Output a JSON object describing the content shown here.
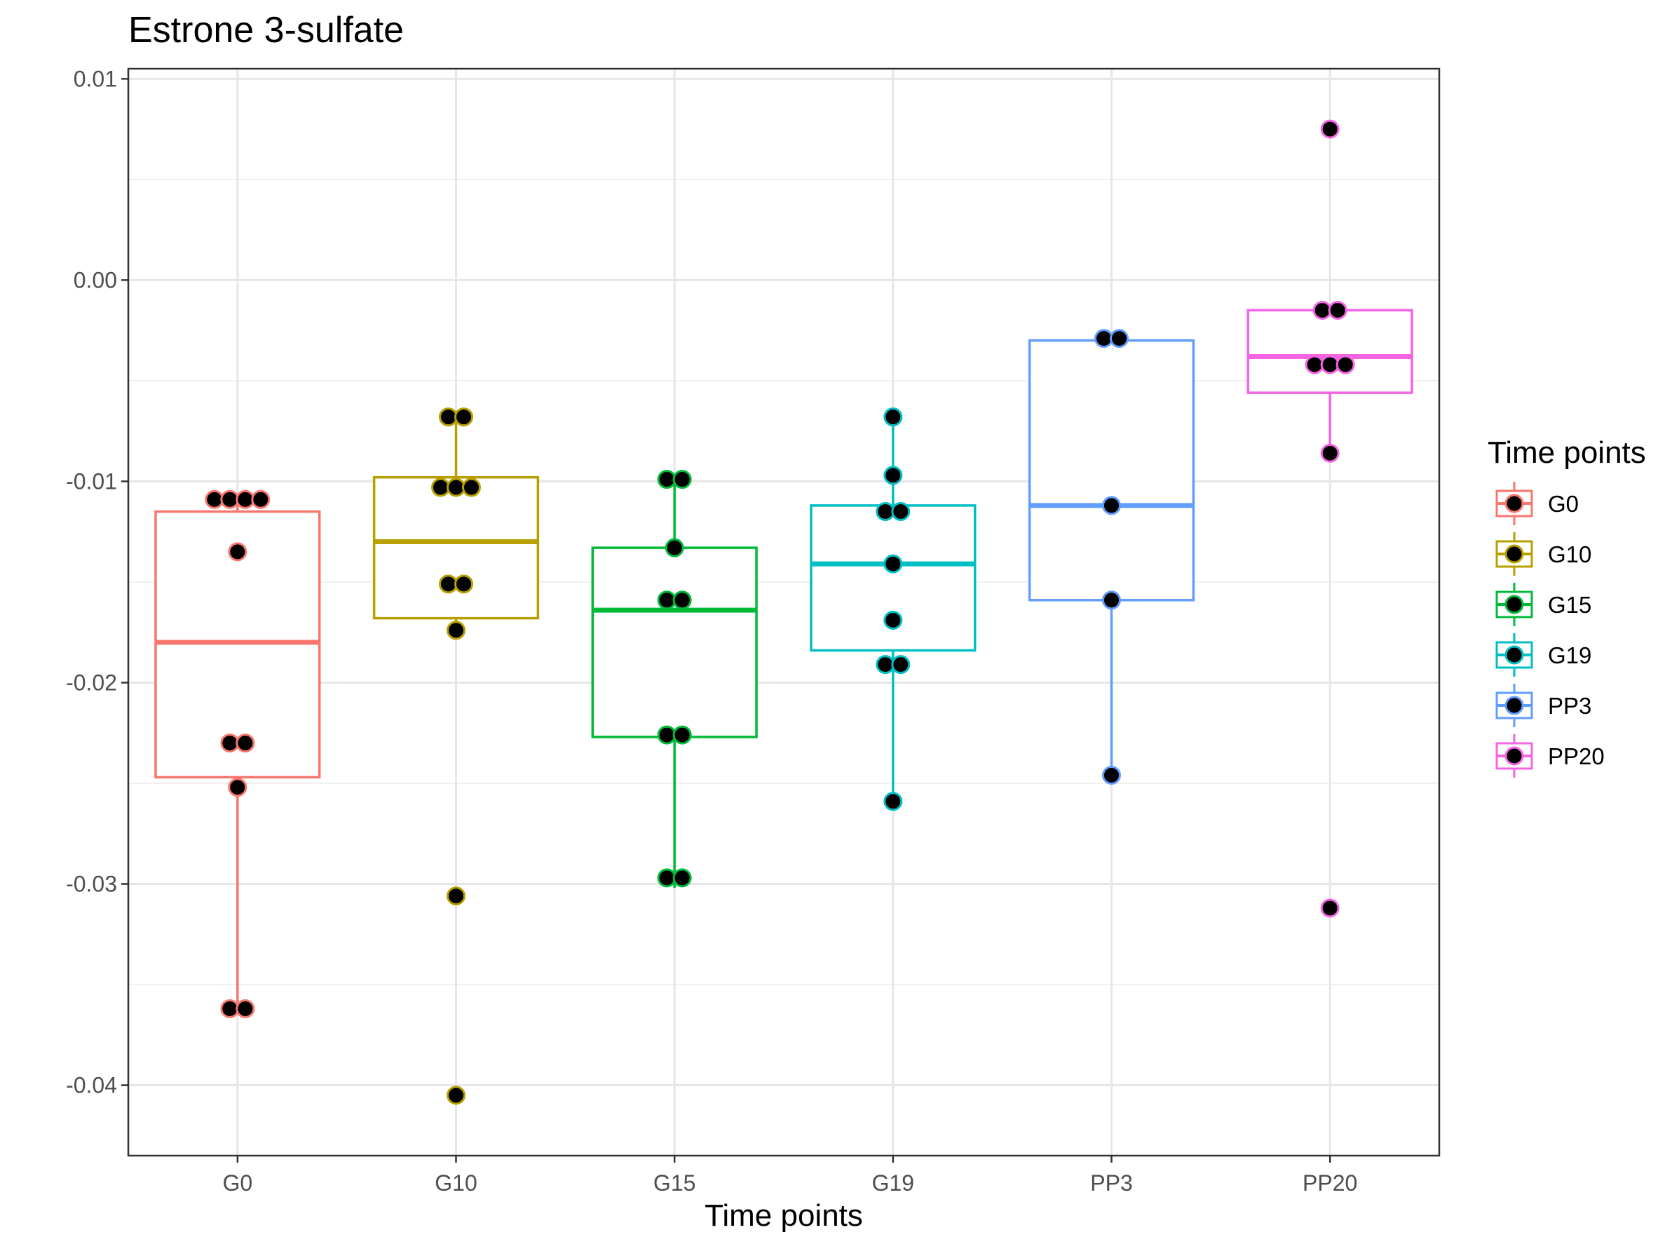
{
  "chart_data": {
    "type": "box",
    "title": "Estrone 3-sulfate",
    "xlabel": "Time points",
    "ylabel": "",
    "ylim": [
      -0.0435,
      0.0105
    ],
    "y_ticks": [
      0.01,
      0.0,
      -0.01,
      -0.02,
      -0.03,
      -0.04
    ],
    "y_tick_labels": [
      "0.01",
      "0.00",
      "-0.01",
      "-0.02",
      "-0.03",
      "-0.04"
    ],
    "categories": [
      "G0",
      "G10",
      "G15",
      "G19",
      "PP3",
      "PP20"
    ],
    "grid": true,
    "legend": {
      "title": "Time points",
      "position": "right"
    },
    "series": [
      {
        "name": "G0",
        "color": "#F8766D",
        "box": {
          "lower": -0.0247,
          "q1": -0.0247,
          "median": -0.018,
          "q3": -0.0115,
          "upper": -0.0109,
          "whisker_low": -0.0362,
          "whisker_high": -0.0109
        },
        "points": [
          -0.0109,
          -0.0109,
          -0.0109,
          -0.0109,
          -0.0135,
          -0.023,
          -0.023,
          -0.0252,
          -0.0362,
          -0.0362
        ]
      },
      {
        "name": "G10",
        "color": "#B79F00",
        "box": {
          "q1": -0.0168,
          "median": -0.013,
          "q3": -0.0098,
          "whisker_low": -0.0174,
          "whisker_high": -0.0068
        },
        "points": [
          -0.0068,
          -0.0068,
          -0.0103,
          -0.0103,
          -0.0103,
          -0.0151,
          -0.0151,
          -0.0174,
          -0.0306,
          -0.0405
        ]
      },
      {
        "name": "G15",
        "color": "#00BA38",
        "box": {
          "q1": -0.0227,
          "median": -0.0164,
          "q3": -0.0133,
          "whisker_low": -0.0302,
          "whisker_high": -0.0099
        },
        "points": [
          -0.0099,
          -0.0099,
          -0.0133,
          -0.0159,
          -0.0159,
          -0.0226,
          -0.0226,
          -0.0297,
          -0.0297
        ]
      },
      {
        "name": "G19",
        "color": "#00BFC4",
        "box": {
          "q1": -0.0184,
          "median": -0.0141,
          "q3": -0.0112,
          "whisker_low": -0.0259,
          "whisker_high": -0.0068
        },
        "points": [
          -0.0068,
          -0.0097,
          -0.0115,
          -0.0115,
          -0.0141,
          -0.0169,
          -0.0191,
          -0.0191,
          -0.0259
        ]
      },
      {
        "name": "PP3",
        "color": "#619CFF",
        "box": {
          "q1": -0.0159,
          "median": -0.0112,
          "q3": -0.003,
          "whisker_low": -0.0246,
          "whisker_high": -0.0029
        },
        "points": [
          -0.0029,
          -0.0029,
          -0.0112,
          -0.0159,
          -0.0246
        ]
      },
      {
        "name": "PP20",
        "color": "#F564E3",
        "box": {
          "q1": -0.0056,
          "median": -0.0038,
          "q3": -0.0015,
          "whisker_low": -0.0086,
          "whisker_high": -0.0015
        },
        "points": [
          0.0075,
          -0.0015,
          -0.0015,
          -0.0042,
          -0.0042,
          -0.0042,
          -0.0086,
          -0.0312
        ]
      }
    ]
  }
}
